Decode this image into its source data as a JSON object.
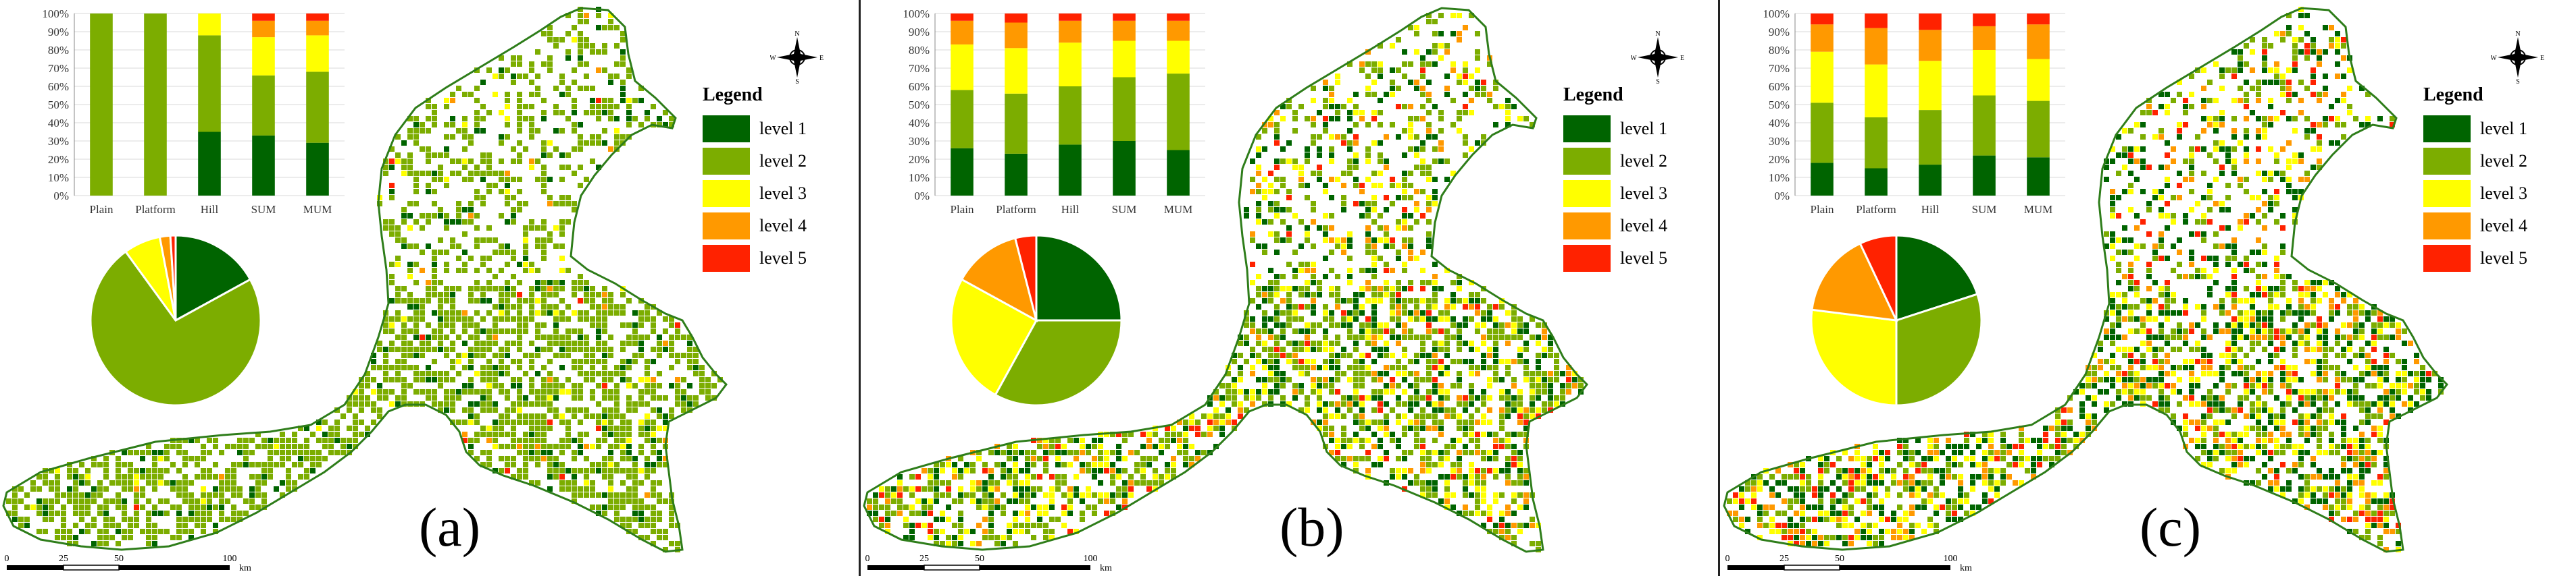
{
  "colors": {
    "level1": "#006400",
    "level2": "#7cad00",
    "level3": "#ffff00",
    "level4": "#ff9900",
    "level5": "#ff2200",
    "map_outline": "#2e7d1a",
    "grid": "#d9d9d9"
  },
  "legend": {
    "title": "Legend",
    "items": [
      {
        "label": "level 1",
        "color": "#006400"
      },
      {
        "label": "level 2",
        "color": "#7cad00"
      },
      {
        "label": "level 3",
        "color": "#ffff00"
      },
      {
        "label": "level 4",
        "color": "#ff9900"
      },
      {
        "label": "level 5",
        "color": "#ff2200"
      }
    ]
  },
  "compass": {
    "n": "N",
    "s": "S",
    "e": "E",
    "w": "W"
  },
  "scale_bar": {
    "ticks": [
      "0",
      "25",
      "50",
      "100"
    ],
    "unit": "km"
  },
  "panels": [
    {
      "label": "(a)"
    },
    {
      "label": "(b)"
    },
    {
      "label": "(c)"
    }
  ],
  "chart_data": [
    {
      "type": "bar",
      "panel": "(a)",
      "stacked": true,
      "categories": [
        "Plain",
        "Platform",
        "Hill",
        "SUM",
        "MUM"
      ],
      "ytick_labels": [
        "0%",
        "10%",
        "20%",
        "30%",
        "40%",
        "50%",
        "60%",
        "70%",
        "80%",
        "90%",
        "100%"
      ],
      "ylim": [
        0,
        100
      ],
      "series": [
        {
          "name": "level 1",
          "values": [
            0,
            0,
            35,
            33,
            29
          ]
        },
        {
          "name": "level 2",
          "values": [
            100,
            100,
            53,
            33,
            39
          ]
        },
        {
          "name": "level 3",
          "values": [
            0,
            0,
            12,
            21,
            20
          ]
        },
        {
          "name": "level 4",
          "values": [
            0,
            0,
            0,
            9,
            8
          ]
        },
        {
          "name": "level 5",
          "values": [
            0,
            0,
            0,
            4,
            4
          ]
        }
      ]
    },
    {
      "type": "pie",
      "panel": "(a)",
      "slices": [
        {
          "name": "level 1",
          "value": 17
        },
        {
          "name": "level 2",
          "value": 73
        },
        {
          "name": "level 3",
          "value": 7
        },
        {
          "name": "level 4",
          "value": 2
        },
        {
          "name": "level 5",
          "value": 1
        }
      ]
    },
    {
      "type": "bar",
      "panel": "(b)",
      "stacked": true,
      "categories": [
        "Plain",
        "Platform",
        "Hill",
        "SUM",
        "MUM"
      ],
      "ytick_labels": [
        "0%",
        "10%",
        "20%",
        "30%",
        "40%",
        "50%",
        "60%",
        "70%",
        "80%",
        "90%",
        "100%"
      ],
      "ylim": [
        0,
        100
      ],
      "series": [
        {
          "name": "level 1",
          "values": [
            26,
            23,
            28,
            30,
            25
          ]
        },
        {
          "name": "level 2",
          "values": [
            32,
            33,
            32,
            35,
            42
          ]
        },
        {
          "name": "level 3",
          "values": [
            25,
            25,
            24,
            20,
            18
          ]
        },
        {
          "name": "level 4",
          "values": [
            13,
            14,
            12,
            11,
            11
          ]
        },
        {
          "name": "level 5",
          "values": [
            4,
            5,
            4,
            4,
            4
          ]
        }
      ]
    },
    {
      "type": "pie",
      "panel": "(b)",
      "slices": [
        {
          "name": "level 1",
          "value": 25
        },
        {
          "name": "level 2",
          "value": 33
        },
        {
          "name": "level 3",
          "value": 25
        },
        {
          "name": "level 4",
          "value": 13
        },
        {
          "name": "level 5",
          "value": 4
        }
      ]
    },
    {
      "type": "bar",
      "panel": "(c)",
      "stacked": true,
      "categories": [
        "Plain",
        "Platform",
        "Hill",
        "SUM",
        "MUM"
      ],
      "ytick_labels": [
        "0%",
        "10%",
        "20%",
        "30%",
        "40%",
        "50%",
        "60%",
        "70%",
        "80%",
        "90%",
        "100%"
      ],
      "ylim": [
        0,
        100
      ],
      "series": [
        {
          "name": "level 1",
          "values": [
            18,
            15,
            17,
            22,
            21
          ]
        },
        {
          "name": "level 2",
          "values": [
            33,
            28,
            30,
            33,
            31
          ]
        },
        {
          "name": "level 3",
          "values": [
            28,
            29,
            27,
            25,
            23
          ]
        },
        {
          "name": "level 4",
          "values": [
            15,
            20,
            17,
            13,
            19
          ]
        },
        {
          "name": "level 5",
          "values": [
            6,
            8,
            9,
            7,
            6
          ]
        }
      ]
    },
    {
      "type": "pie",
      "panel": "(c)",
      "slices": [
        {
          "name": "level 1",
          "value": 20
        },
        {
          "name": "level 2",
          "value": 30
        },
        {
          "name": "level 3",
          "value": 27
        },
        {
          "name": "level 4",
          "value": 16
        },
        {
          "name": "level 5",
          "value": 7
        }
      ]
    }
  ],
  "map_density": [
    {
      "panel": "(a)",
      "levels": [
        0.12,
        0.82,
        0.04,
        0.015,
        0.005
      ]
    },
    {
      "panel": "(b)",
      "levels": [
        0.22,
        0.45,
        0.18,
        0.1,
        0.05
      ]
    },
    {
      "panel": "(c)",
      "levels": [
        0.3,
        0.28,
        0.2,
        0.13,
        0.09
      ]
    }
  ]
}
